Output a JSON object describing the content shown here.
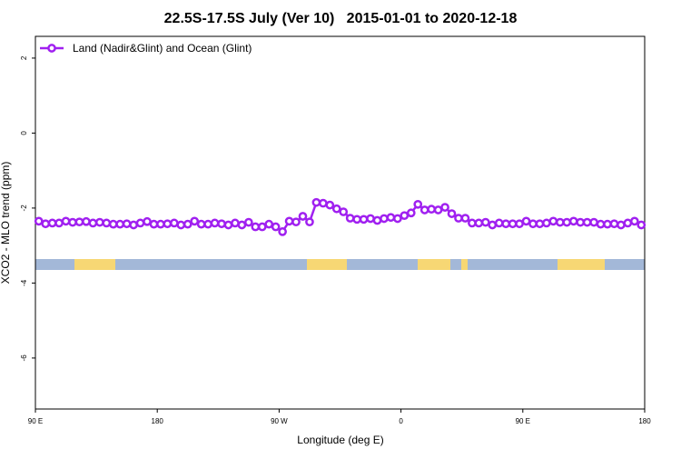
{
  "chart_data": {
    "type": "line",
    "title": "22.5S-17.5S July (Ver 10)   2015-01-01 to 2020-12-18",
    "x_label": "Longitude (deg E)",
    "y_label": "XCO2 - MLO trend (ppm)",
    "xlim": [
      90,
      540
    ],
    "ylim": [
      -7.36,
      2.58
    ],
    "xticks": [
      {
        "value": 90,
        "label": "90 E"
      },
      180,
      {
        "value": 270,
        "label": "90 W"
      },
      {
        "value": 360,
        "label": "0"
      },
      {
        "value": 450,
        "label": "90 E"
      },
      {
        "value": 540,
        "label": "180"
      }
    ],
    "yticks": [
      2,
      0,
      -2,
      -4,
      -6
    ],
    "legend": "top-left",
    "x": [
      92.5,
      97.5,
      102.5,
      107.5,
      112.5,
      117.5,
      122.5,
      127.5,
      132.5,
      137.5,
      142.5,
      147.5,
      152.5,
      157.5,
      162.5,
      167.5,
      172.5,
      177.5,
      182.5,
      187.5,
      192.5,
      197.5,
      202.5,
      207.5,
      212.5,
      217.5,
      222.5,
      227.5,
      232.5,
      237.5,
      242.5,
      247.5,
      252.5,
      257.5,
      262.5,
      267.5,
      272.5,
      277.5,
      282.5,
      287.5,
      292.5,
      297.5,
      302.5,
      307.5,
      312.5,
      317.5,
      322.5,
      327.5,
      332.5,
      337.5,
      342.5,
      347.5,
      352.5,
      357.5,
      362.5,
      367.5,
      372.5,
      377.5,
      382.5,
      387.5,
      392.5,
      397.5,
      402.5,
      407.5,
      412.5,
      417.5,
      422.5,
      427.5,
      432.5,
      437.5,
      442.5,
      447.5,
      452.5,
      457.5,
      462.5,
      467.5,
      472.5,
      477.5,
      482.5,
      487.5,
      492.5,
      497.5,
      502.5,
      507.5,
      512.5,
      517.5,
      522.5,
      527.5,
      532.5,
      537.5
    ],
    "series": [
      {
        "name": "Land (Nadir&Glint) and Ocean (Glint)",
        "color": "#a020f0",
        "values": [
          -2.35,
          -2.42,
          -2.4,
          -2.4,
          -2.35,
          -2.38,
          -2.37,
          -2.36,
          -2.4,
          -2.38,
          -2.4,
          -2.43,
          -2.43,
          -2.42,
          -2.45,
          -2.4,
          -2.36,
          -2.43,
          -2.43,
          -2.42,
          -2.4,
          -2.45,
          -2.43,
          -2.35,
          -2.43,
          -2.43,
          -2.4,
          -2.42,
          -2.45,
          -2.4,
          -2.45,
          -2.38,
          -2.5,
          -2.5,
          -2.43,
          -2.5,
          -2.63,
          -2.35,
          -2.37,
          -2.22,
          -2.37,
          -1.85,
          -1.87,
          -1.92,
          -2.02,
          -2.1,
          -2.27,
          -2.3,
          -2.3,
          -2.28,
          -2.33,
          -2.28,
          -2.25,
          -2.28,
          -2.2,
          -2.13,
          -1.9,
          -2.05,
          -2.03,
          -2.05,
          -1.98,
          -2.15,
          -2.27,
          -2.27,
          -2.4,
          -2.4,
          -2.38,
          -2.45,
          -2.4,
          -2.42,
          -2.42,
          -2.42,
          -2.35,
          -2.42,
          -2.42,
          -2.4,
          -2.35,
          -2.38,
          -2.38,
          -2.35,
          -2.38,
          -2.38,
          -2.38,
          -2.43,
          -2.43,
          -2.42,
          -2.45,
          -2.4,
          -2.35,
          -2.45
        ]
      }
    ]
  }
}
